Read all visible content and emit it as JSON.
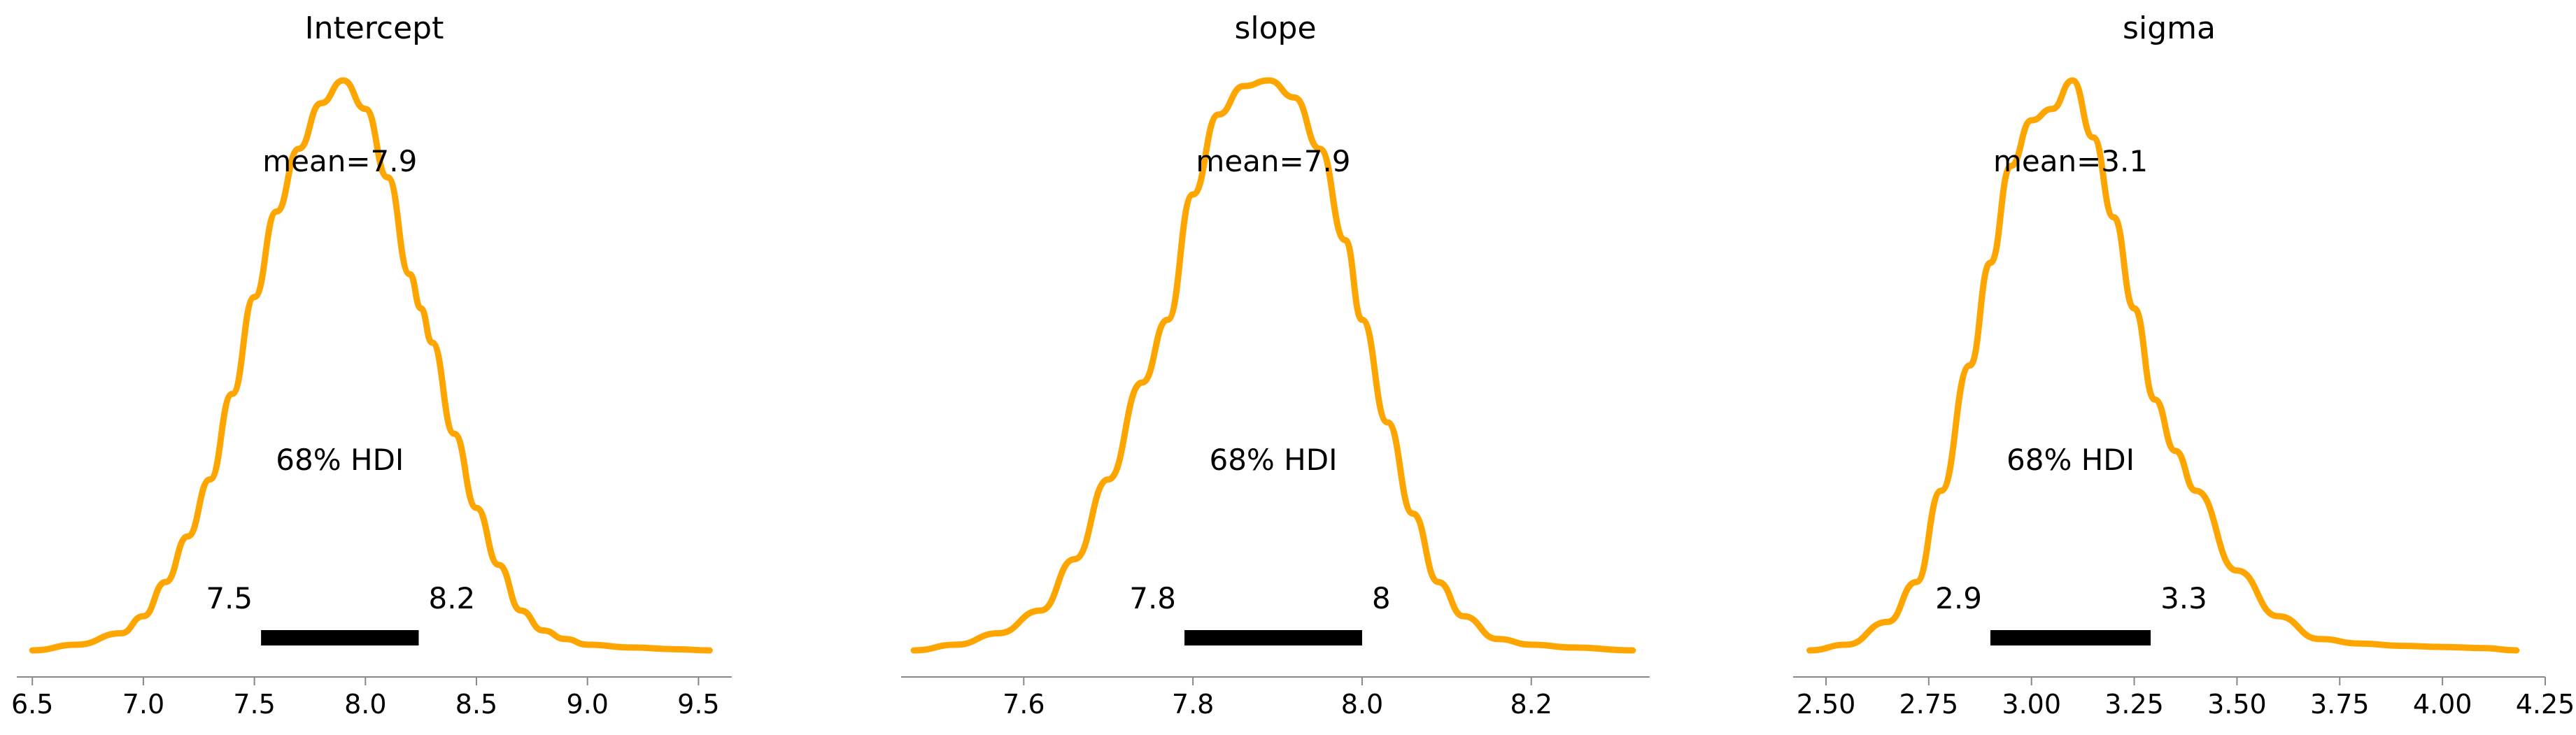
{
  "colors": {
    "curve": "#FFA500",
    "hdi_bar": "#000000",
    "axis": "#888888"
  },
  "chart_data": [
    {
      "type": "area",
      "title": "Intercept",
      "xlim": [
        6.43,
        9.65
      ],
      "xticks": [
        6.5,
        7.0,
        7.5,
        8.0,
        8.5,
        9.0,
        9.5
      ],
      "xtick_labels": [
        "6.5",
        "7.0",
        "7.5",
        "8.0",
        "8.5",
        "9.0",
        "9.5"
      ],
      "density": {
        "x": [
          6.5,
          6.7,
          6.9,
          7.0,
          7.1,
          7.2,
          7.3,
          7.4,
          7.5,
          7.6,
          7.7,
          7.8,
          7.9,
          8.0,
          8.1,
          8.2,
          8.25,
          8.3,
          8.4,
          8.5,
          8.6,
          8.7,
          8.8,
          8.9,
          9.0,
          9.2,
          9.4,
          9.55
        ],
        "y": [
          0.0,
          0.01,
          0.03,
          0.06,
          0.12,
          0.2,
          0.3,
          0.45,
          0.62,
          0.77,
          0.88,
          0.96,
          1.0,
          0.95,
          0.83,
          0.66,
          0.6,
          0.54,
          0.38,
          0.25,
          0.15,
          0.07,
          0.035,
          0.02,
          0.01,
          0.005,
          0.002,
          0.0
        ]
      },
      "mean_label": "mean=7.9",
      "hdi_label": "68% HDI",
      "hdi": [
        7.53,
        8.24
      ],
      "hdi_low_label": "7.5",
      "hdi_high_label": "8.2"
    },
    {
      "type": "area",
      "title": "slope",
      "xlim": [
        7.455,
        8.34
      ],
      "xticks": [
        7.6,
        7.8,
        8.0,
        8.2
      ],
      "xtick_labels": [
        "7.6",
        "7.8",
        "8.0",
        "8.2"
      ],
      "density": {
        "x": [
          7.47,
          7.52,
          7.57,
          7.62,
          7.66,
          7.7,
          7.74,
          7.77,
          7.8,
          7.83,
          7.86,
          7.89,
          7.92,
          7.95,
          7.98,
          8.0,
          8.03,
          8.06,
          8.09,
          8.12,
          8.16,
          8.2,
          8.25,
          8.32
        ],
        "y": [
          0.0,
          0.01,
          0.03,
          0.07,
          0.16,
          0.3,
          0.47,
          0.58,
          0.8,
          0.94,
          0.99,
          1.0,
          0.97,
          0.88,
          0.72,
          0.58,
          0.4,
          0.24,
          0.12,
          0.06,
          0.02,
          0.01,
          0.005,
          0.0
        ]
      },
      "mean_label": "mean=7.9",
      "hdi_label": "68% HDI",
      "hdi": [
        7.79,
        8.0
      ],
      "hdi_low_label": "7.8",
      "hdi_high_label": "8"
    },
    {
      "type": "area",
      "title": "sigma",
      "xlim": [
        2.42,
        4.25
      ],
      "xticks": [
        2.5,
        2.75,
        3.0,
        3.25,
        3.5,
        3.75,
        4.0,
        4.25
      ],
      "xtick_labels": [
        "2.50",
        "2.75",
        "3.00",
        "3.25",
        "3.50",
        "3.75",
        "4.00",
        "4.25"
      ],
      "density": {
        "x": [
          2.46,
          2.55,
          2.65,
          2.72,
          2.78,
          2.85,
          2.9,
          2.95,
          3.0,
          3.05,
          3.1,
          3.15,
          3.2,
          3.25,
          3.3,
          3.35,
          3.4,
          3.5,
          3.6,
          3.7,
          3.8,
          3.9,
          4.0,
          4.1,
          4.18
        ],
        "y": [
          0.0,
          0.01,
          0.05,
          0.12,
          0.28,
          0.5,
          0.68,
          0.85,
          0.93,
          0.95,
          1.0,
          0.9,
          0.76,
          0.6,
          0.44,
          0.35,
          0.28,
          0.14,
          0.06,
          0.02,
          0.012,
          0.008,
          0.006,
          0.004,
          0.0
        ]
      },
      "mean_label": "mean=3.1",
      "hdi_label": "68% HDI",
      "hdi": [
        2.9,
        3.29
      ],
      "hdi_low_label": "2.9",
      "hdi_high_label": "3.3"
    }
  ]
}
